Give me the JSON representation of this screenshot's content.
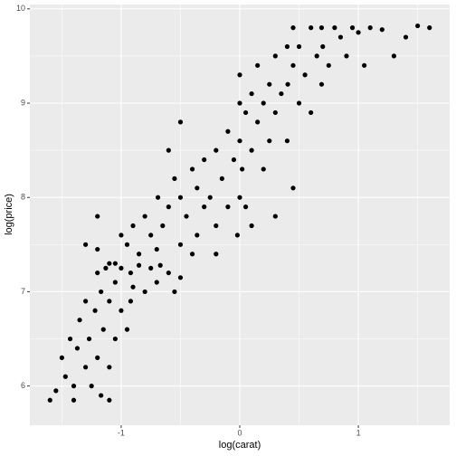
{
  "chart_data": {
    "type": "scatter",
    "xlabel": "log(carat)",
    "ylabel": "log(price)",
    "xlim": [
      -1.77,
      1.77
    ],
    "ylim": [
      5.584,
      10.046
    ],
    "xticks": [
      -1,
      0,
      1
    ],
    "yticks": [
      6,
      7,
      8,
      9,
      10
    ],
    "minor_xticks": [
      -1.5,
      -0.5,
      0.5,
      1.5
    ],
    "minor_yticks": [
      6.5,
      7.5,
      8.5,
      9.5
    ],
    "grid": true,
    "color": "#000000",
    "x": [
      -1.6,
      -1.55,
      -1.5,
      -1.47,
      -1.43,
      -1.4,
      -1.37,
      -1.35,
      -1.3,
      -1.3,
      -1.27,
      -1.25,
      -1.22,
      -1.2,
      -1.2,
      -1.17,
      -1.17,
      -1.15,
      -1.13,
      -1.1,
      -1.1,
      -1.05,
      -1.05,
      -1.0,
      -1.0,
      -0.95,
      -0.92,
      -0.92,
      -0.9,
      -0.85,
      -0.8,
      -0.75,
      -0.7,
      -0.67,
      -0.6,
      -0.55,
      -0.5,
      -1.1,
      -1.05,
      -1.2,
      -1.0,
      -1.1,
      -0.95,
      -0.9,
      -0.85,
      -0.8,
      -0.75,
      -0.7,
      -0.69,
      -0.65,
      -0.6,
      -0.55,
      -0.5,
      -0.5,
      -0.45,
      -0.4,
      -0.36,
      -0.36,
      -0.3,
      -0.3,
      -0.25,
      -0.2,
      -0.2,
      -0.15,
      -0.1,
      -0.1,
      -0.05,
      -0.02,
      0,
      0,
      0,
      0,
      0.02,
      0.05,
      0.05,
      0.1,
      0.1,
      0.15,
      0.15,
      0.2,
      0.2,
      0.25,
      0.25,
      0.3,
      0.3,
      0.35,
      0.4,
      0.4,
      0.405,
      0.45,
      0.45,
      0.5,
      0.5,
      0.55,
      0.6,
      0.6,
      0.65,
      0.69,
      0.69,
      0.7,
      0.75,
      0.8,
      0.85,
      0.9,
      0.95,
      1.0,
      1.1,
      1.2,
      1.3,
      1.4,
      1.5,
      1.6,
      1.05,
      0.45,
      0.3,
      0.1,
      -0.5,
      -0.6,
      -1.2,
      -1.3,
      -0.4,
      -0.2,
      -1.4
    ],
    "y": [
      5.85,
      5.95,
      6.3,
      6.1,
      6.5,
      6.0,
      6.4,
      6.7,
      6.2,
      6.9,
      6.5,
      6.0,
      6.8,
      7.2,
      6.3,
      7.0,
      5.9,
      6.6,
      7.25,
      6.2,
      6.9,
      7.1,
      6.5,
      7.25,
      6.8,
      6.6,
      7.2,
      6.9,
      7.05,
      7.28,
      7.0,
      7.25,
      7.1,
      7.28,
      7.2,
      7.0,
      7.15,
      7.3,
      7.3,
      7.45,
      7.6,
      5.85,
      7.5,
      7.7,
      7.4,
      7.8,
      7.6,
      7.45,
      8.0,
      7.7,
      7.9,
      8.2,
      7.5,
      8.0,
      7.8,
      8.3,
      7.6,
      8.1,
      8.4,
      7.9,
      8.0,
      8.5,
      7.7,
      8.2,
      8.7,
      7.9,
      8.4,
      7.6,
      8.0,
      8.6,
      9.0,
      9.3,
      8.3,
      8.9,
      7.9,
      9.1,
      8.5,
      8.8,
      9.4,
      8.3,
      9.0,
      9.2,
      8.6,
      9.5,
      8.9,
      9.1,
      9.6,
      8.6,
      9.2,
      9.4,
      9.8,
      9.0,
      9.6,
      9.3,
      9.8,
      8.9,
      9.5,
      9.8,
      9.2,
      9.6,
      9.4,
      9.8,
      9.7,
      9.5,
      9.8,
      9.75,
      9.8,
      9.78,
      9.5,
      9.7,
      9.82,
      9.8,
      9.4,
      8.1,
      7.8,
      7.7,
      8.8,
      8.5,
      7.8,
      7.5,
      7.4,
      7.4,
      5.85
    ]
  }
}
